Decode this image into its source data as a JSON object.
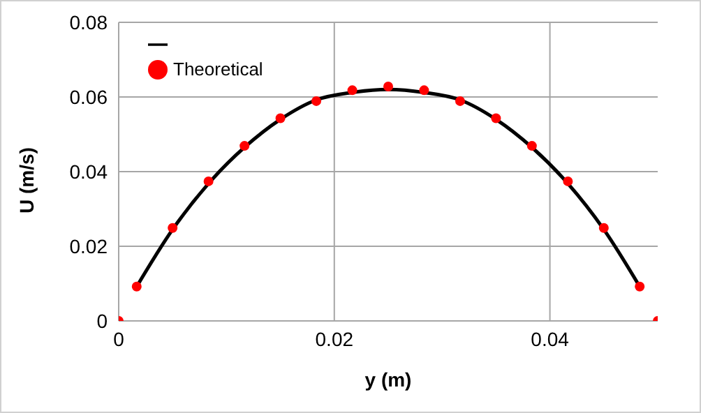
{
  "chart_data": {
    "type": "line",
    "xlabel": "y (m)",
    "ylabel": "U (m/s)",
    "xlim": [
      0,
      0.05
    ],
    "xticks": [
      0,
      0.02,
      0.04
    ],
    "ylim": [
      0,
      0.08
    ],
    "yticks": [
      0,
      0.02,
      0.04,
      0.06,
      0.08
    ],
    "grid": true,
    "legend": "top left",
    "series": [
      {
        "color": "#000000",
        "marker": "none",
        "x": [
          0.00167,
          0.005,
          0.00833,
          0.01167,
          0.015,
          0.01833,
          0.02167,
          0.025,
          0.02833,
          0.03167,
          0.035,
          0.03833,
          0.04167,
          0.045,
          0.04833
        ],
        "values": [
          0.0092,
          0.0245,
          0.0368,
          0.0465,
          0.054,
          0.0592,
          0.0612,
          0.062,
          0.0612,
          0.0592,
          0.054,
          0.0465,
          0.0368,
          0.0245,
          0.0092
        ]
      },
      {
        "name": "Theoretical",
        "type": "scatter",
        "color": "#ff0000",
        "marker": "circle",
        "x": [
          0,
          0.00167,
          0.005,
          0.00833,
          0.01167,
          0.015,
          0.01833,
          0.02167,
          0.025,
          0.02833,
          0.03167,
          0.035,
          0.03833,
          0.04167,
          0.045,
          0.04833,
          0.05
        ],
        "values": [
          0,
          0.0092,
          0.0249,
          0.0374,
          0.0469,
          0.0543,
          0.0589,
          0.0618,
          0.0628,
          0.0618,
          0.0589,
          0.0543,
          0.0469,
          0.0374,
          0.0249,
          0.0092,
          0
        ]
      }
    ]
  }
}
